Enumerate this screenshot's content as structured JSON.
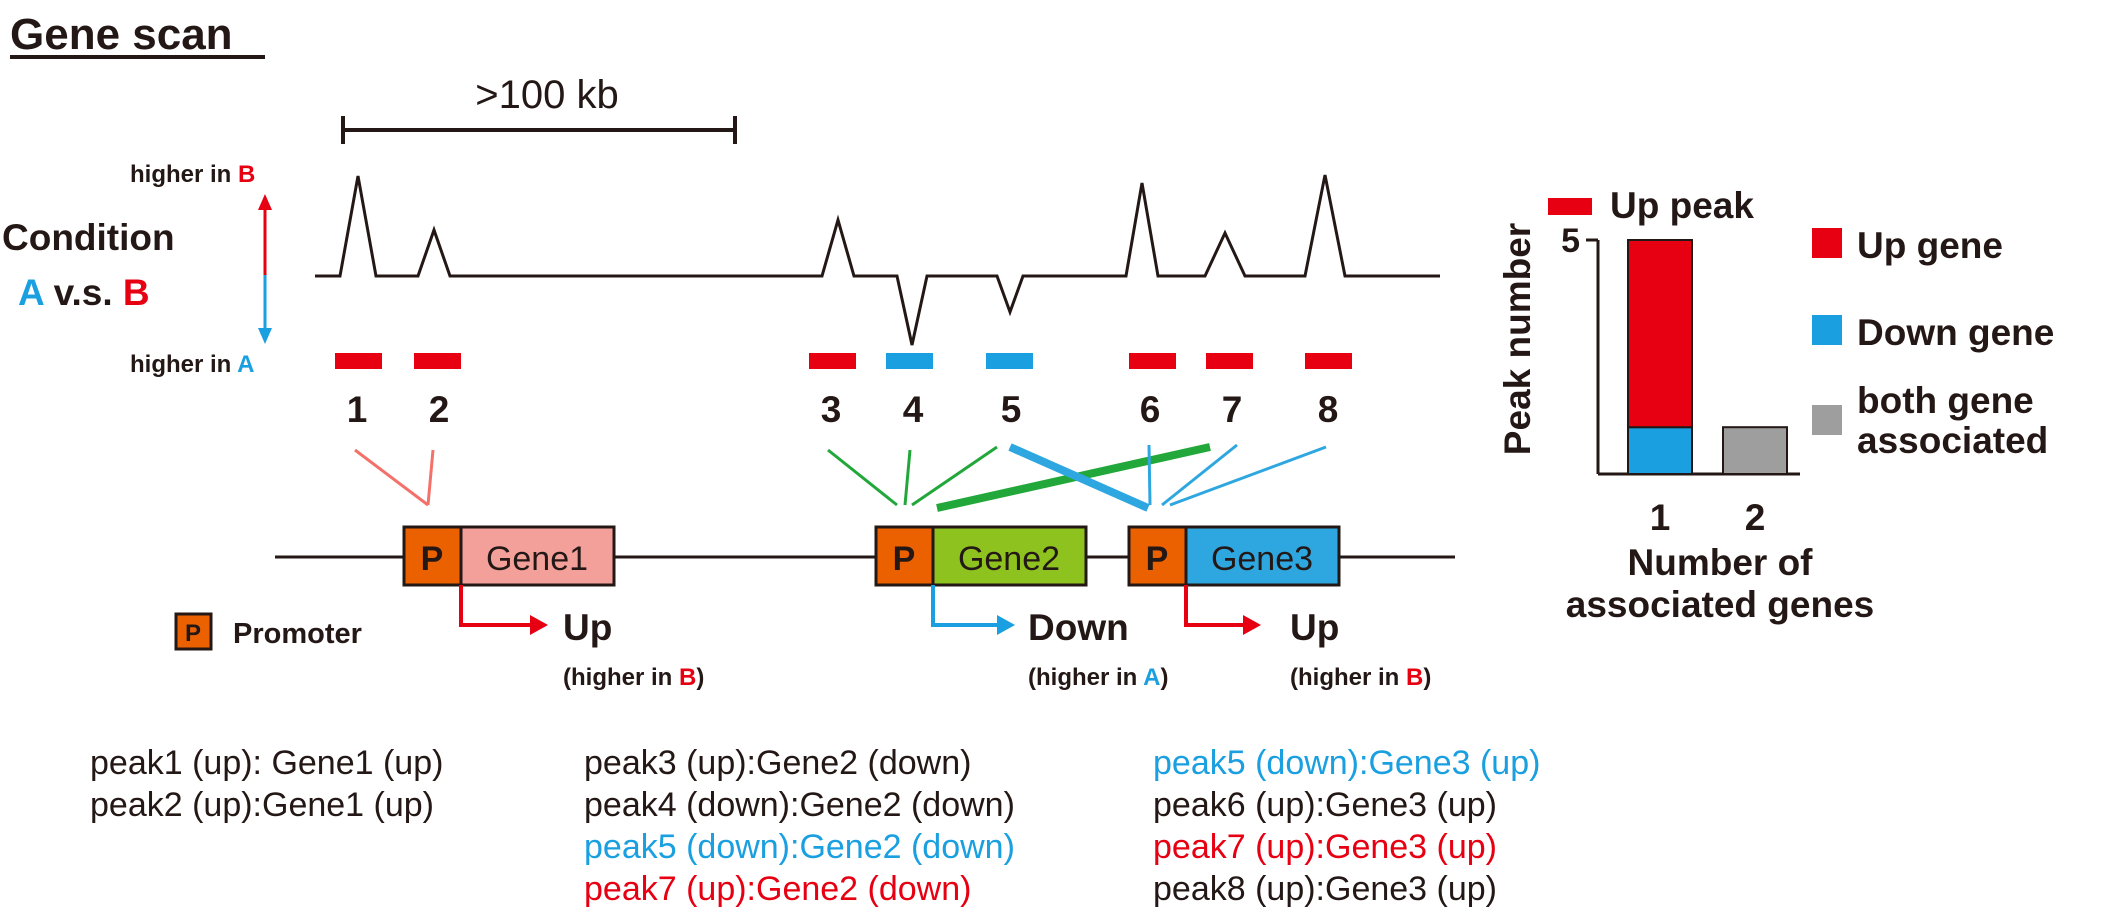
{
  "colors": {
    "red": "#e60012",
    "blue": "#1a9fe0",
    "green": "#22a83a",
    "orange": "#eb6100",
    "pink": "#f4a09a",
    "lime": "#8dc21f",
    "gene3_blue": "#2ea7e0",
    "gray": "#9e9e9e",
    "pink_line": "#f4716b",
    "black": "#231815"
  },
  "title": "Gene scan",
  "scale_label": ">100 kb",
  "condition": {
    "label": "Condition",
    "a": "A",
    "vs": " v.s. ",
    "b": "B",
    "higher_in_b_prefix": "higher in ",
    "higher_in_b_letter": "B",
    "higher_in_a_prefix": "higher in ",
    "higher_in_a_letter": "A"
  },
  "peaks": [
    {
      "label": "1",
      "direction": "up"
    },
    {
      "label": "2",
      "direction": "up"
    },
    {
      "label": "3",
      "direction": "up"
    },
    {
      "label": "4",
      "direction": "down"
    },
    {
      "label": "5",
      "direction": "down"
    },
    {
      "label": "6",
      "direction": "up"
    },
    {
      "label": "7",
      "direction": "up"
    },
    {
      "label": "8",
      "direction": "up"
    }
  ],
  "genes": [
    {
      "name": "Gene1",
      "promoter": "P",
      "change": "Up",
      "note_prefix": "(higher in ",
      "note_letter": "B",
      "note_suffix": ")"
    },
    {
      "name": "Gene2",
      "promoter": "P",
      "change": "Down",
      "note_prefix": "(higher in ",
      "note_letter": "A",
      "note_suffix": ")"
    },
    {
      "name": "Gene3",
      "promoter": "P",
      "change": "Up",
      "note_prefix": "(higher in ",
      "note_letter": "B",
      "note_suffix": ")"
    }
  ],
  "legend": {
    "promoter_symbol": "P",
    "promoter_label": "Promoter"
  },
  "associations": {
    "col1": [
      {
        "text": "peak1 (up): Gene1 (up)",
        "color": "black"
      },
      {
        "text": "peak2 (up):Gene1 (up)",
        "color": "black"
      }
    ],
    "col2": [
      {
        "text": "peak3 (up):Gene2 (down)",
        "color": "black"
      },
      {
        "text": "peak4 (down):Gene2 (down)",
        "color": "black"
      },
      {
        "text": "peak5 (down):Gene2 (down)",
        "color": "blue"
      },
      {
        "text": "peak7 (up):Gene2 (down)",
        "color": "red"
      }
    ],
    "col3": [
      {
        "text": "peak5 (down):Gene3 (up)",
        "color": "blue"
      },
      {
        "text": "peak6 (up):Gene3 (up)",
        "color": "black"
      },
      {
        "text": "peak7 (up):Gene3 (up)",
        "color": "red"
      },
      {
        "text": "peak8 (up):Gene3 (up)",
        "color": "black"
      }
    ]
  },
  "chart_data": {
    "type": "bar",
    "categories": [
      "1",
      "2"
    ],
    "series": [
      {
        "name": "Down gene",
        "values": [
          1,
          0
        ]
      },
      {
        "name": "Up gene",
        "values": [
          4,
          0
        ]
      },
      {
        "name": "both gene associated",
        "values": [
          0,
          1
        ]
      }
    ],
    "xlabel": "Number of associated genes",
    "ylabel": "Peak number",
    "yticks": [
      "5"
    ],
    "ylim": [
      0,
      5.5
    ],
    "grid": false,
    "legend_peak": "Up peak",
    "legend": [
      "Up gene",
      "Down gene",
      "both gene associated"
    ],
    "legend_placement": "right"
  }
}
